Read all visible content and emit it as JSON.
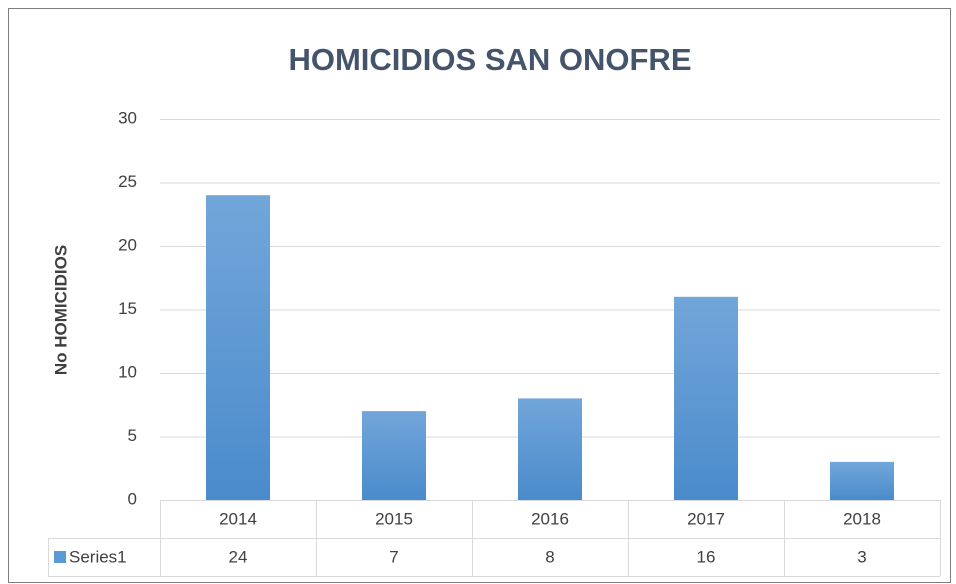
{
  "chart_data": {
    "type": "bar",
    "title": "HOMICIDIOS SAN ONOFRE",
    "y_label": "No HOMICIDIOS",
    "categories": [
      "2014",
      "2015",
      "2016",
      "2017",
      "2018"
    ],
    "series": [
      {
        "name": "Series1",
        "color": "#5b9bd5",
        "values": [
          24,
          7,
          8,
          16,
          3
        ]
      }
    ],
    "ylim": [
      0,
      30
    ],
    "yticks": [
      0,
      5,
      10,
      15,
      20,
      25,
      30
    ],
    "grid": true,
    "data_table": true
  }
}
